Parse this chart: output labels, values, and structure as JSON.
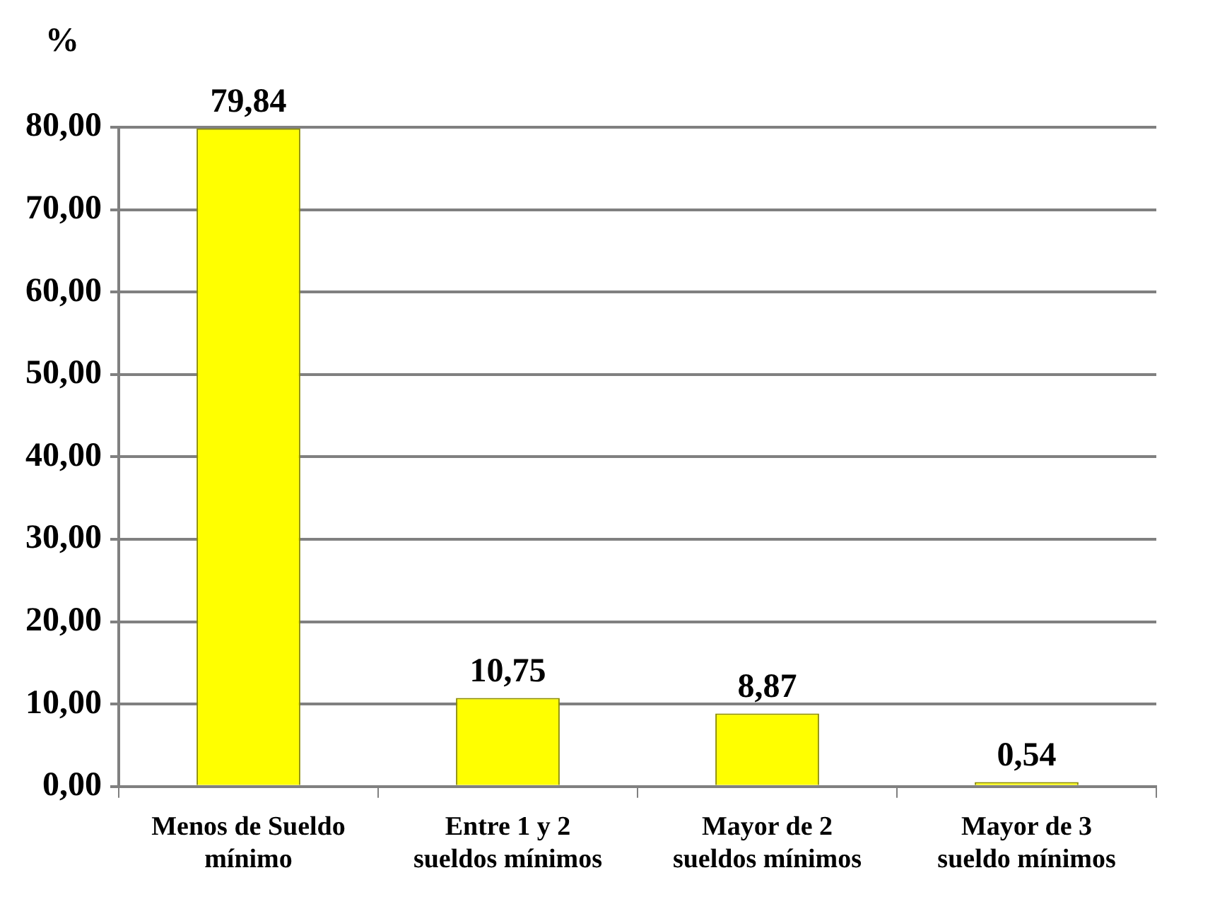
{
  "chart_data": {
    "type": "bar",
    "ylabel": "%",
    "categories": [
      "Menos de Sueldo mínimo",
      "Entre 1 y 2 sueldos mínimos",
      "Mayor de 2 sueldos mínimos",
      "Mayor de 3 sueldo mínimos"
    ],
    "values": [
      79.84,
      10.75,
      8.87,
      0.54
    ],
    "color": "#ffff00",
    "value_labels": [
      "79,84",
      "10,75",
      "8,87",
      "0,54"
    ],
    "ylim": [
      0,
      80
    ],
    "yticks": [
      {
        "value": 0,
        "label": "0,00"
      },
      {
        "value": 10,
        "label": "10,00"
      },
      {
        "value": 20,
        "label": "20,00"
      },
      {
        "value": 30,
        "label": "30,00"
      },
      {
        "value": 40,
        "label": "40,00"
      },
      {
        "value": 50,
        "label": "50,00"
      },
      {
        "value": 60,
        "label": "60,00"
      },
      {
        "value": 70,
        "label": "70,00"
      },
      {
        "value": 80,
        "label": "80,00"
      }
    ],
    "grid": "y"
  }
}
